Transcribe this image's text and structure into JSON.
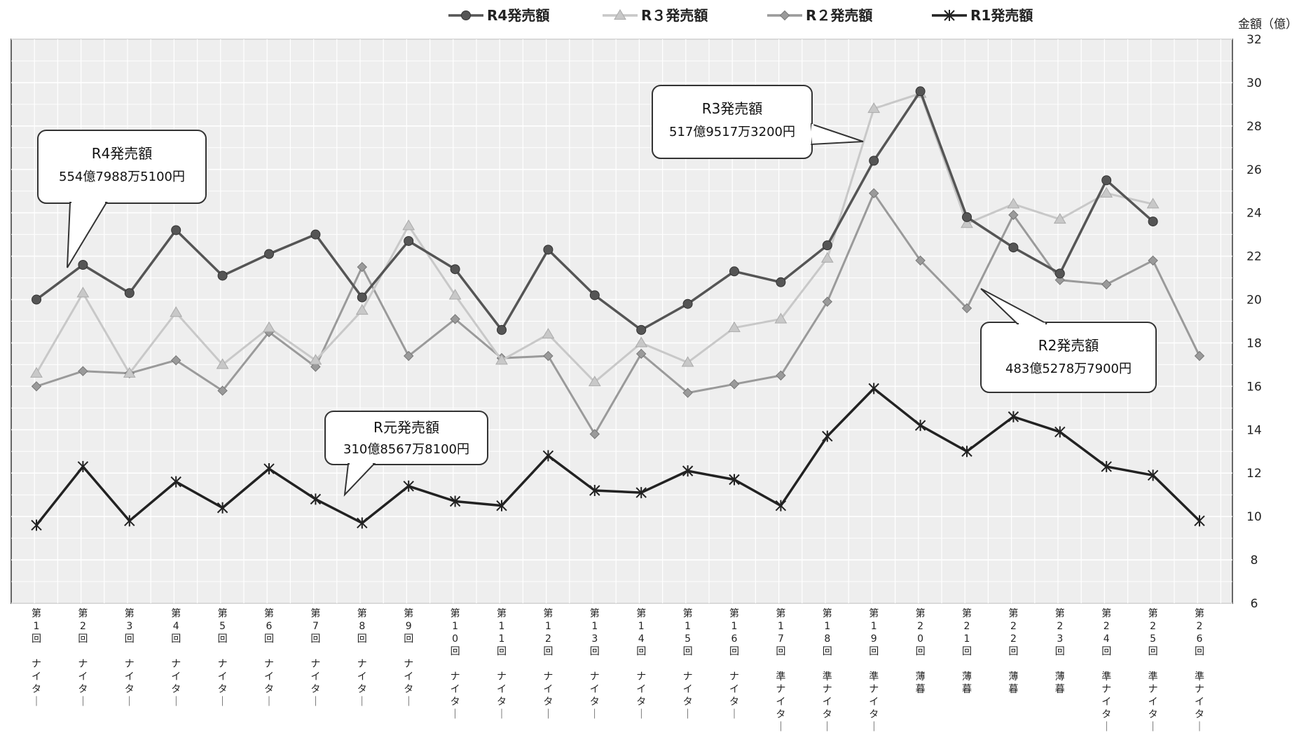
{
  "chart_data": {
    "type": "line",
    "y_unit_label": "金額（億）",
    "ylim": [
      6,
      32
    ],
    "y_ticks": [
      6,
      8,
      10,
      12,
      14,
      16,
      18,
      20,
      22,
      24,
      26,
      28,
      30,
      32
    ],
    "grid": true,
    "legend_position": "top",
    "categories": [
      {
        "race": "第1回",
        "type": "ナイター"
      },
      {
        "race": "第2回",
        "type": "ナイター"
      },
      {
        "race": "第3回",
        "type": "ナイター"
      },
      {
        "race": "第4回",
        "type": "ナイター"
      },
      {
        "race": "第5回",
        "type": "ナイター"
      },
      {
        "race": "第6回",
        "type": "ナイター"
      },
      {
        "race": "第7回",
        "type": "ナイター"
      },
      {
        "race": "第8回",
        "type": "ナイター"
      },
      {
        "race": "第9回",
        "type": "ナイター"
      },
      {
        "race": "第10回",
        "type": "ナイター"
      },
      {
        "race": "第11回",
        "type": "ナイター"
      },
      {
        "race": "第12回",
        "type": "ナイター"
      },
      {
        "race": "第13回",
        "type": "ナイター"
      },
      {
        "race": "第14回",
        "type": "ナイター"
      },
      {
        "race": "第15回",
        "type": "ナイター"
      },
      {
        "race": "第16回",
        "type": "ナイター"
      },
      {
        "race": "第17回",
        "type": "準ナイター"
      },
      {
        "race": "第18回",
        "type": "準ナイター"
      },
      {
        "race": "第19回",
        "type": "準ナイター"
      },
      {
        "race": "第20回",
        "type": "薄暮"
      },
      {
        "race": "第21回",
        "type": "薄暮"
      },
      {
        "race": "第22回",
        "type": "薄暮"
      },
      {
        "race": "第23回",
        "type": "薄暮"
      },
      {
        "race": "第24回",
        "type": "準ナイター"
      },
      {
        "race": "第25回",
        "type": "準ナイター"
      },
      {
        "race": "第26回",
        "type": "準ナイター"
      }
    ],
    "series": [
      {
        "name": "R4発売額",
        "color": "#555555",
        "marker": "circle",
        "values": [
          20.0,
          21.6,
          20.3,
          23.2,
          21.1,
          22.1,
          23.0,
          20.1,
          22.7,
          21.4,
          18.6,
          22.3,
          20.2,
          18.6,
          19.8,
          21.3,
          20.8,
          22.5,
          26.4,
          29.6,
          23.8,
          22.4,
          21.2,
          25.5,
          23.6,
          null
        ]
      },
      {
        "name": "R３発売額",
        "color": "#c8c8c8",
        "marker": "triangle",
        "values": [
          16.6,
          20.3,
          16.6,
          19.4,
          17.0,
          18.7,
          17.2,
          19.5,
          23.4,
          20.2,
          17.2,
          18.4,
          16.2,
          18.0,
          17.1,
          18.7,
          19.1,
          21.9,
          28.8,
          29.5,
          23.5,
          24.4,
          23.7,
          24.9,
          24.4,
          null
        ]
      },
      {
        "name": "R２発売額",
        "color": "#9a9a9a",
        "marker": "diamond",
        "values": [
          16.0,
          16.7,
          16.6,
          17.2,
          15.8,
          18.5,
          16.9,
          21.5,
          17.4,
          19.1,
          17.3,
          17.4,
          13.8,
          17.5,
          15.7,
          16.1,
          16.5,
          19.9,
          24.9,
          21.8,
          19.6,
          23.9,
          20.9,
          20.7,
          21.8,
          17.4
        ]
      },
      {
        "name": "R1発売額",
        "color": "#222222",
        "marker": "star",
        "values": [
          9.6,
          12.3,
          9.8,
          11.6,
          10.4,
          12.2,
          10.8,
          9.7,
          11.4,
          10.7,
          10.5,
          12.8,
          11.2,
          11.1,
          12.1,
          11.7,
          10.5,
          13.7,
          15.9,
          14.2,
          13.0,
          14.6,
          13.9,
          12.3,
          11.9,
          9.8
        ]
      }
    ],
    "callouts": [
      {
        "title": "R4発売額",
        "value": "554億7988万5100円"
      },
      {
        "title": "R3発売額",
        "value": "517億9517万3200円"
      },
      {
        "title": "R2発売額",
        "value": "483億5278万7900円"
      },
      {
        "title": "R元発売額",
        "value": "310億8567万8100円"
      }
    ]
  }
}
